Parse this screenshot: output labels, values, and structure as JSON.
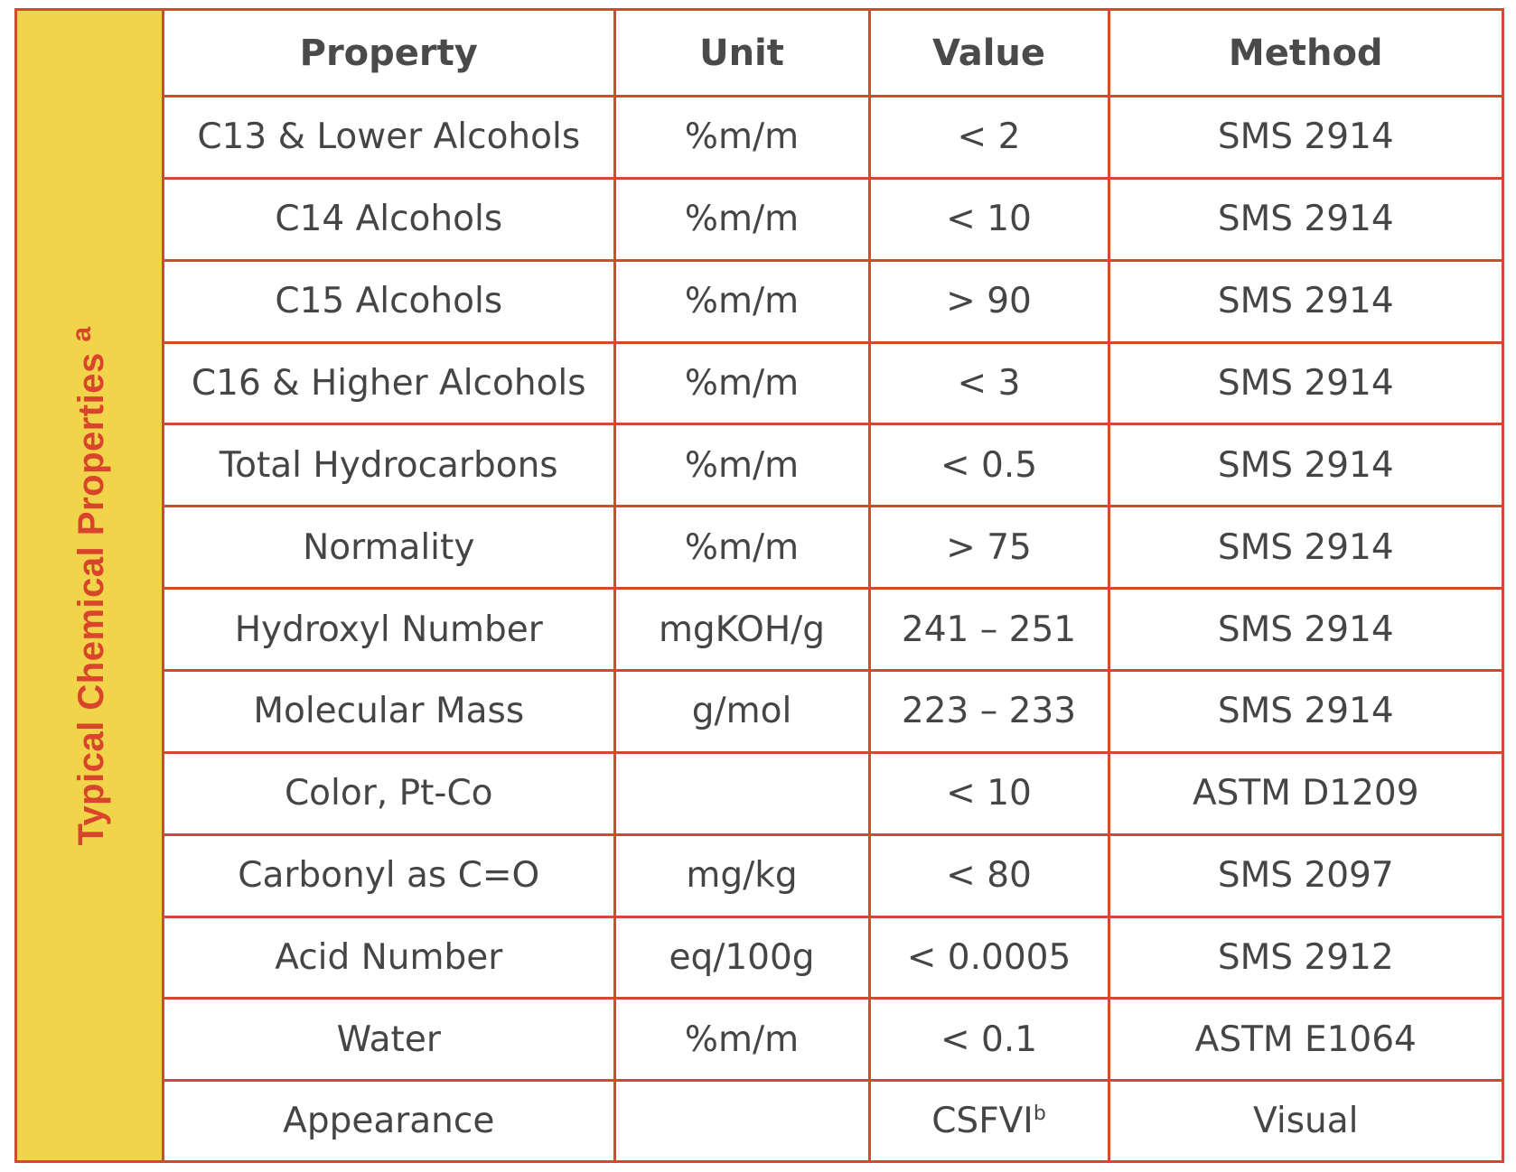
{
  "side_label": "Typical Chemical Properties",
  "side_label_sup": "a",
  "headers": [
    "Property",
    "Unit",
    "Value",
    "Method"
  ],
  "rows": [
    {
      "property": "C13 & Lower Alcohols",
      "unit": "%m/m",
      "value": "< 2",
      "method": "SMS 2914"
    },
    {
      "property": "C14 Alcohols",
      "unit": "%m/m",
      "value": "< 10",
      "method": "SMS 2914"
    },
    {
      "property": "C15 Alcohols",
      "unit": "%m/m",
      "value": "> 90",
      "method": "SMS 2914"
    },
    {
      "property": "C16 & Higher Alcohols",
      "unit": "%m/m",
      "value": "< 3",
      "method": "SMS 2914"
    },
    {
      "property": "Total Hydrocarbons",
      "unit": "%m/m",
      "value": "< 0.5",
      "method": "SMS 2914"
    },
    {
      "property": "Normality",
      "unit": "%m/m",
      "value": "> 75",
      "method": "SMS 2914"
    },
    {
      "property": "Hydroxyl Number",
      "unit": "mgKOH/g",
      "value": "241 – 251",
      "method": "SMS 2914"
    },
    {
      "property": "Molecular Mass",
      "unit": "g/mol",
      "value": "223 – 233",
      "method": "SMS 2914"
    },
    {
      "property": "Color, Pt-Co",
      "unit": "",
      "value": "< 10",
      "method": "ASTM D1209"
    },
    {
      "property": "Carbonyl as C=O",
      "unit": "mg/kg",
      "value": "< 80",
      "method": "SMS 2097"
    },
    {
      "property": "Acid Number",
      "unit": "eq/100g",
      "value": "< 0.0005",
      "method": "SMS 2912"
    },
    {
      "property": "Water",
      "unit": "%m/m",
      "value": "< 0.1",
      "method": "ASTM E1064"
    },
    {
      "property": "Appearance",
      "unit": "",
      "value": "CSFVI",
      "value_sup": "b",
      "method": "Visual"
    }
  ]
}
